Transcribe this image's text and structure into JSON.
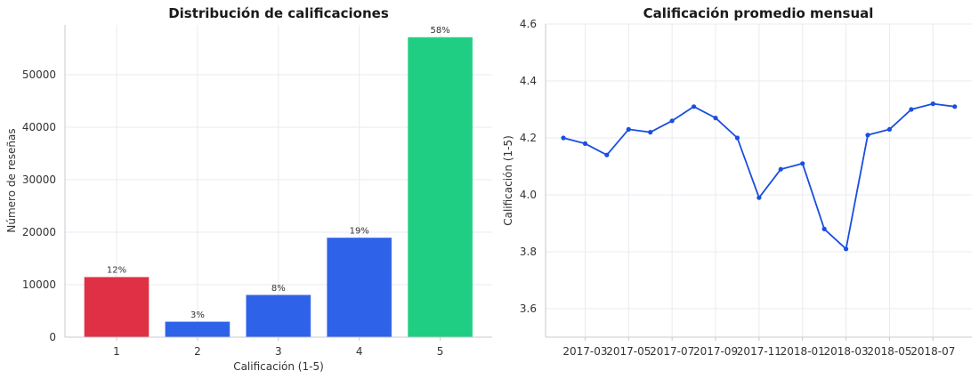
{
  "chart_data": [
    {
      "type": "bar",
      "title": "Distribución de calificaciones",
      "xlabel": "Calificación (1-5)",
      "ylabel": "Número de reseñas",
      "categories": [
        "1",
        "2",
        "3",
        "4",
        "5"
      ],
      "values": [
        11400,
        2900,
        8000,
        18900,
        57100
      ],
      "data_labels": [
        "12%",
        "3%",
        "8%",
        "19%",
        "58%"
      ],
      "bar_colors": [
        "#e03045",
        "#2e62e8",
        "#2e62e8",
        "#2e62e8",
        "#1fce82"
      ],
      "ylim": [
        0,
        59500
      ],
      "yticks": [
        0,
        10000,
        20000,
        30000,
        40000,
        50000
      ],
      "ytick_labels": [
        "0",
        "10000",
        "20000",
        "30000",
        "40000",
        "50000"
      ],
      "grid": true
    },
    {
      "type": "line",
      "title": "Calificación promedio mensual",
      "xlabel": "",
      "ylabel": "Calificación (1-5)",
      "x": [
        "2017-02",
        "2017-03",
        "2017-04",
        "2017-05",
        "2017-06",
        "2017-07",
        "2017-08",
        "2017-09",
        "2017-10",
        "2017-11",
        "2017-12",
        "2018-01",
        "2018-02",
        "2018-03",
        "2018-04",
        "2018-05",
        "2018-06",
        "2018-07",
        "2018-08"
      ],
      "values": [
        4.2,
        4.18,
        4.14,
        4.23,
        4.22,
        4.26,
        4.31,
        4.27,
        4.2,
        3.99,
        4.09,
        4.11,
        3.88,
        3.81,
        4.21,
        4.23,
        4.3,
        4.32,
        4.31
      ],
      "xtick_labels": [
        "2017-03",
        "2017-05",
        "2017-07",
        "2017-09",
        "2017-11",
        "2018-01",
        "2018-03",
        "2018-05",
        "2018-07"
      ],
      "ylim": [
        3.5,
        4.6
      ],
      "yticks": [
        3.6,
        3.8,
        4.0,
        4.2,
        4.4,
        4.6
      ],
      "ytick_labels": [
        "3.6",
        "3.8",
        "4.0",
        "4.2",
        "4.4",
        "4.6"
      ],
      "line_color": "#1a4ee0",
      "grid": true
    }
  ]
}
